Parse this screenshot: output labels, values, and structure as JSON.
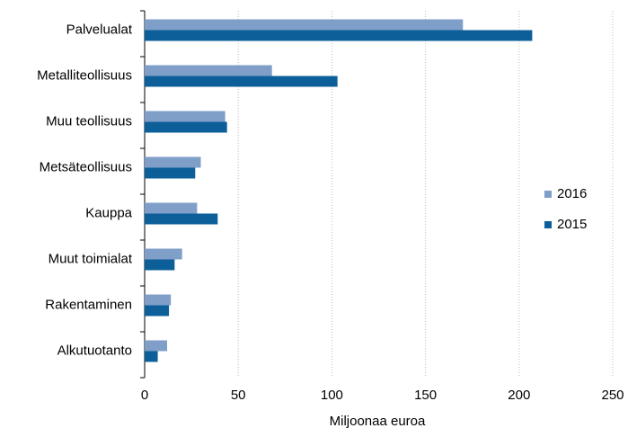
{
  "chart_data": {
    "type": "hbar",
    "categories": [
      "Palvelualat",
      "Metalliteollisuus",
      "Muu teollisuus",
      "Metsäteollisuus",
      "Kauppa",
      "Muut toimialat",
      "Rakentaminen",
      "Alkutuotanto"
    ],
    "series": [
      {
        "name": "2016",
        "color": "#7f9fc9",
        "values": [
          170,
          68,
          43,
          30,
          28,
          20,
          14,
          12
        ]
      },
      {
        "name": "2015",
        "color": "#0d5f99",
        "values": [
          207,
          103,
          44,
          27,
          39,
          16,
          13,
          7
        ]
      }
    ],
    "xlim": [
      0,
      250
    ],
    "xticks": [
      0,
      50,
      100,
      150,
      200,
      250
    ],
    "x_label": "Miljoonaa euroa",
    "grid": true,
    "legend": "right"
  }
}
